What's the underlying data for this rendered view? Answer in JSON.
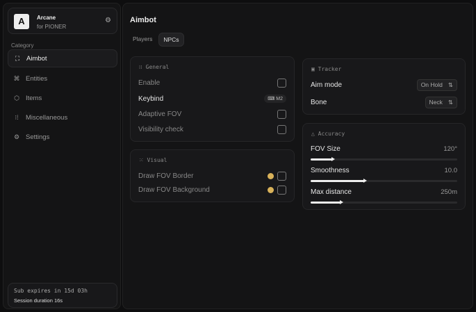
{
  "brand": {
    "logo": "A",
    "name": "Arcane",
    "subtitle": "for PIONER"
  },
  "sidebar": {
    "category_label": "Category",
    "items": [
      {
        "label": "Aimbot",
        "icon": "crosshair-icon"
      },
      {
        "label": "Entities",
        "icon": "entities-icon"
      },
      {
        "label": "Items",
        "icon": "box-icon"
      },
      {
        "label": "Miscellaneous",
        "icon": "grid-icon"
      },
      {
        "label": "Settings",
        "icon": "gear-icon"
      }
    ],
    "active": "Aimbot",
    "footer": {
      "subscription": "Sub expires in 15d 03h",
      "session": "Session duration 16s"
    }
  },
  "main": {
    "title": "Aimbot",
    "tabs": [
      {
        "label": "Players"
      },
      {
        "label": "NPCs"
      }
    ],
    "active_tab": "NPCs"
  },
  "general": {
    "title": "General",
    "enable": "Enable",
    "keybind": "Keybind",
    "keybind_value": "M2",
    "adaptive_fov": "Adaptive FOV",
    "visibility_check": "Visibility check"
  },
  "visual": {
    "title": "Visual",
    "draw_border": "Draw FOV Border",
    "draw_background": "Draw FOV Background",
    "color": "#d9b25a"
  },
  "tracker": {
    "title": "Tracker",
    "aim_mode": "Aim mode",
    "aim_mode_value": "On Hold",
    "bone": "Bone",
    "bone_value": "Neck"
  },
  "accuracy": {
    "title": "Accuracy",
    "sliders": [
      {
        "label": "FOV Size",
        "value": "120°",
        "fill_percent": 15
      },
      {
        "label": "Smoothness",
        "value": "10.0",
        "fill_percent": 37
      },
      {
        "label": "Max distance",
        "value": "250m",
        "fill_percent": 21
      }
    ]
  }
}
